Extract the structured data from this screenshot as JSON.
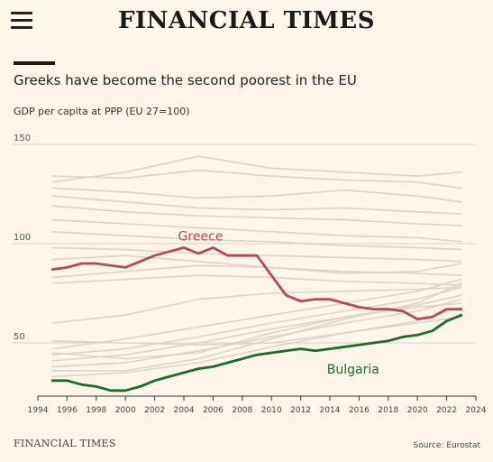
{
  "header": {
    "menu_icon": "hamburger-menu-icon",
    "masthead": "FINANCIAL TIMES"
  },
  "headline": "Greeks have become the second poorest in the EU",
  "subtitle": "GDP per capita at PPP (EU 27=100)",
  "footer": {
    "brand": "FINANCIAL TIMES",
    "source": "Source: Eurostat"
  },
  "colors": {
    "background": "#fff5ea",
    "greece": "#b5485a",
    "bulgaria": "#1c6b2a",
    "other_countries": "#ddd4c9",
    "grid": "#d8d3cc"
  },
  "chart_data": {
    "type": "line",
    "title": "Greeks have become the second poorest in the EU",
    "ylabel": "GDP per capita at PPP (EU 27=100)",
    "xlim": [
      1994,
      2024
    ],
    "ylim": [
      25,
      150
    ],
    "yticks": [
      50,
      100,
      150
    ],
    "xticks": [
      1994,
      1996,
      1998,
      2000,
      2002,
      2004,
      2006,
      2008,
      2010,
      2012,
      2014,
      2016,
      2018,
      2020,
      2022,
      2024
    ],
    "grid": true,
    "highlighted_series": [
      {
        "name": "Greece",
        "color": "#b5485a",
        "x": [
          1995,
          1996,
          1997,
          1998,
          1999,
          2000,
          2001,
          2002,
          2003,
          2004,
          2005,
          2006,
          2007,
          2008,
          2009,
          2010,
          2011,
          2012,
          2013,
          2014,
          2015,
          2016,
          2017,
          2018,
          2019,
          2020,
          2021,
          2022,
          2023
        ],
        "values": [
          87,
          88,
          90,
          90,
          89,
          88,
          91,
          94,
          96,
          98,
          95,
          98,
          94,
          94,
          94,
          84,
          74,
          71,
          72,
          72,
          70,
          68,
          67,
          67,
          66,
          62,
          63,
          67,
          67
        ]
      },
      {
        "name": "Bulgaria",
        "color": "#1c6b2a",
        "x": [
          1995,
          1996,
          1997,
          1998,
          1999,
          2000,
          2001,
          2002,
          2003,
          2004,
          2005,
          2006,
          2007,
          2008,
          2009,
          2010,
          2011,
          2012,
          2013,
          2014,
          2015,
          2016,
          2017,
          2018,
          2019,
          2020,
          2021,
          2022,
          2023
        ],
        "values": [
          31,
          31,
          29,
          28,
          26,
          26,
          28,
          31,
          33,
          35,
          37,
          38,
          40,
          42,
          44,
          45,
          46,
          47,
          46,
          47,
          48,
          49,
          50,
          51,
          53,
          54,
          56,
          61,
          64
        ]
      }
    ],
    "background_series": [
      {
        "x": [
          1995,
          2000,
          2005,
          2010,
          2015,
          2020,
          2023
        ],
        "values": [
          134,
          133,
          137,
          134,
          132,
          131,
          128
        ]
      },
      {
        "x": [
          1995,
          2000,
          2005,
          2010,
          2015,
          2020,
          2023
        ],
        "values": [
          131,
          136,
          144,
          138,
          136,
          134,
          136
        ]
      },
      {
        "x": [
          1995,
          2000,
          2005,
          2010,
          2015,
          2020,
          2023
        ],
        "values": [
          128,
          126,
          123,
          124,
          127,
          124,
          121
        ]
      },
      {
        "x": [
          1995,
          2000,
          2005,
          2010,
          2015,
          2020,
          2023
        ],
        "values": [
          124,
          121,
          118,
          117,
          118,
          116,
          115
        ]
      },
      {
        "x": [
          1995,
          2000,
          2005,
          2010,
          2015,
          2020,
          2023
        ],
        "values": [
          119,
          116,
          114,
          113,
          112,
          110,
          109
        ]
      },
      {
        "x": [
          1995,
          2000,
          2005,
          2010,
          2015,
          2020,
          2023
        ],
        "values": [
          112,
          110,
          108,
          106,
          104,
          103,
          101
        ]
      },
      {
        "x": [
          1995,
          2000,
          2005,
          2010,
          2015,
          2020,
          2023
        ],
        "values": [
          106,
          104,
          102,
          101,
          99,
          98,
          97
        ]
      },
      {
        "x": [
          1995,
          2000,
          2005,
          2010,
          2015,
          2020,
          2023
        ],
        "values": [
          98,
          97,
          95,
          94,
          93,
          92,
          91
        ]
      },
      {
        "x": [
          1995,
          2000,
          2005,
          2010,
          2015,
          2020,
          2023
        ],
        "values": [
          83,
          86,
          89,
          88,
          86,
          85,
          84
        ]
      },
      {
        "x": [
          1995,
          2000,
          2005,
          2010,
          2015,
          2020,
          2023
        ],
        "values": [
          80,
          82,
          84,
          83,
          81,
          80,
          79
        ]
      },
      {
        "x": [
          1995,
          2000,
          2005,
          2010,
          2015,
          2020,
          2023
        ],
        "values": [
          92,
          94,
          91,
          88,
          85,
          86,
          90
        ]
      },
      {
        "x": [
          1995,
          2000,
          2005,
          2010,
          2015,
          2020,
          2023
        ],
        "values": [
          47,
          52,
          58,
          64,
          70,
          76,
          82
        ]
      },
      {
        "x": [
          1995,
          2000,
          2005,
          2010,
          2015,
          2020,
          2023
        ],
        "values": [
          44,
          47,
          53,
          60,
          66,
          72,
          78
        ]
      },
      {
        "x": [
          1995,
          2000,
          2005,
          2010,
          2015,
          2020,
          2023
        ],
        "values": [
          41,
          44,
          50,
          57,
          63,
          69,
          74
        ]
      },
      {
        "x": [
          1995,
          2000,
          2005,
          2010,
          2015,
          2020,
          2023
        ],
        "values": [
          38,
          40,
          46,
          53,
          60,
          66,
          72
        ]
      },
      {
        "x": [
          1995,
          2000,
          2005,
          2010,
          2015,
          2020,
          2023
        ],
        "values": [
          36,
          36,
          42,
          52,
          62,
          70,
          80
        ]
      },
      {
        "x": [
          1995,
          2000,
          2005,
          2010,
          2015,
          2020,
          2023
        ],
        "values": [
          33,
          35,
          40,
          48,
          55,
          61,
          68
        ]
      },
      {
        "x": [
          1995,
          2000,
          2005,
          2010,
          2015,
          2020,
          2023
        ],
        "values": [
          51,
          50,
          49,
          50,
          55,
          60,
          63
        ]
      },
      {
        "x": [
          1995,
          2000,
          2005,
          2010,
          2015,
          2020,
          2023
        ],
        "values": [
          60,
          64,
          72,
          75,
          76,
          77,
          78
        ]
      },
      {
        "x": [
          1995,
          2000,
          2005,
          2010,
          2015,
          2020,
          2023
        ],
        "values": [
          45,
          42,
          45,
          55,
          63,
          68,
          70
        ]
      }
    ]
  }
}
